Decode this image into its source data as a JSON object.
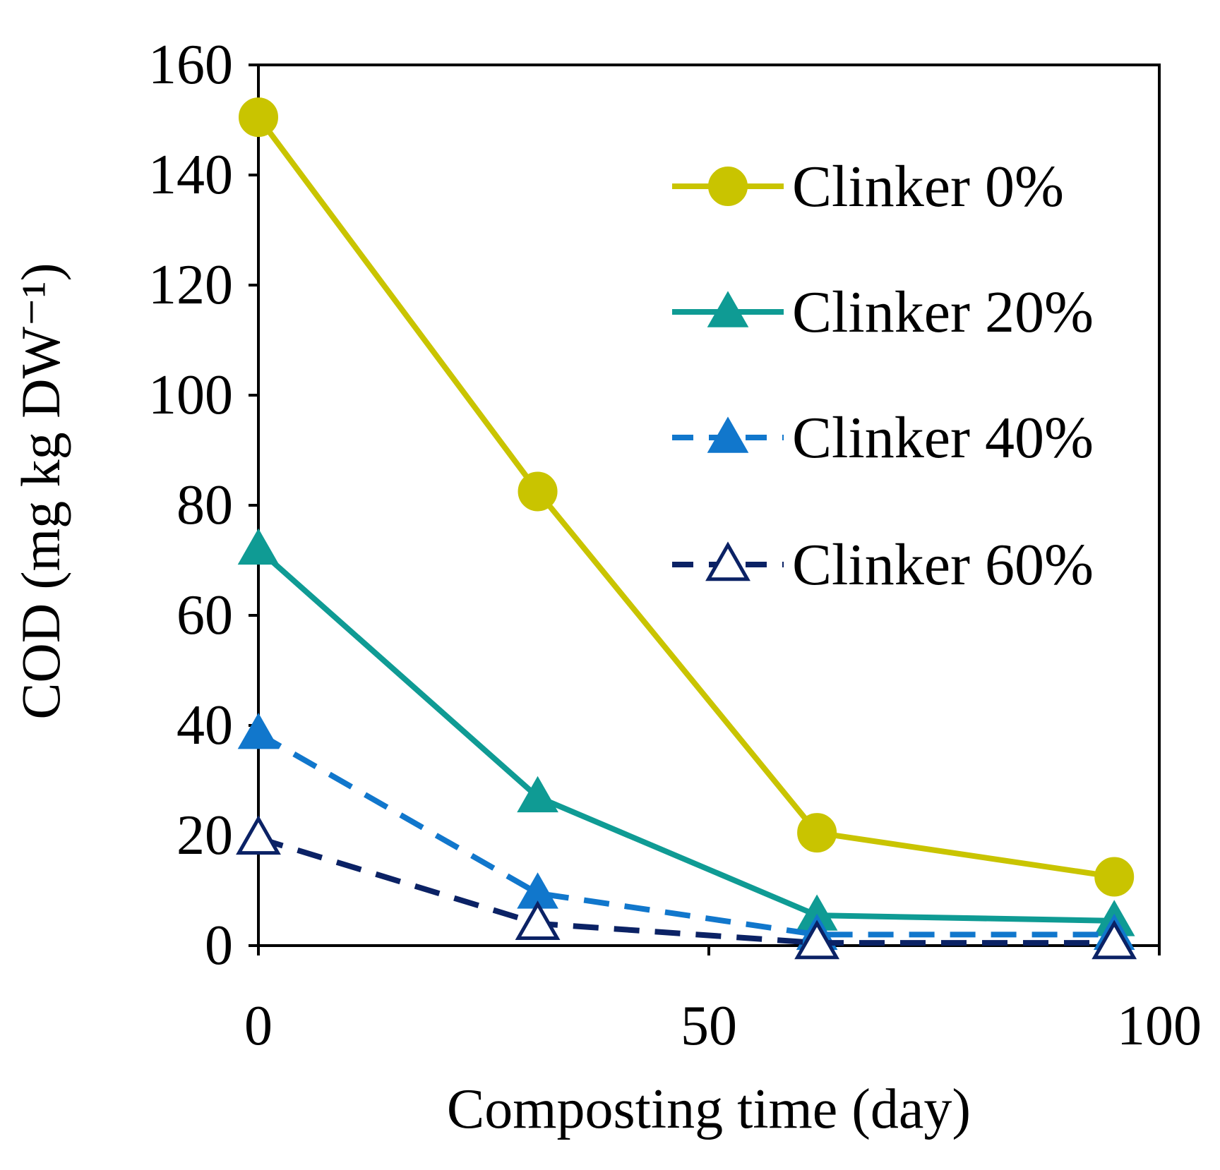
{
  "chart_data": {
    "type": "line",
    "title": "",
    "xlabel": "Composting time (day)",
    "ylabel": "COD (mg kg DW⁻¹)",
    "xlim": [
      0,
      100
    ],
    "ylim": [
      0,
      160
    ],
    "xticks": [
      0,
      50,
      100
    ],
    "yticks": [
      0,
      20,
      40,
      60,
      80,
      100,
      120,
      140,
      160
    ],
    "grid": false,
    "legend_position": "top-right",
    "series": [
      {
        "name": "Clinker 0%",
        "color": "#c9c400",
        "line_style": "solid",
        "marker": "circle",
        "x": [
          0,
          31,
          62,
          95
        ],
        "y": [
          150.5,
          82.5,
          20.5,
          12.5
        ]
      },
      {
        "name": "Clinker 20%",
        "color": "#0f9b94",
        "line_style": "solid",
        "marker": "triangle",
        "x": [
          0,
          31,
          62,
          95
        ],
        "y": [
          72,
          27,
          5.5,
          4.5
        ]
      },
      {
        "name": "Clinker 40%",
        "color": "#1177cc",
        "line_style": "dashed",
        "marker": "triangle",
        "x": [
          0,
          31,
          62,
          95
        ],
        "y": [
          38.5,
          9.5,
          2,
          2
        ]
      },
      {
        "name": "Clinker 60%",
        "color": "#0b2265",
        "line_style": "dashed",
        "marker": "triangle-open",
        "x": [
          0,
          31,
          62,
          95
        ],
        "y": [
          19.5,
          4,
          0.5,
          0.5
        ]
      }
    ]
  }
}
